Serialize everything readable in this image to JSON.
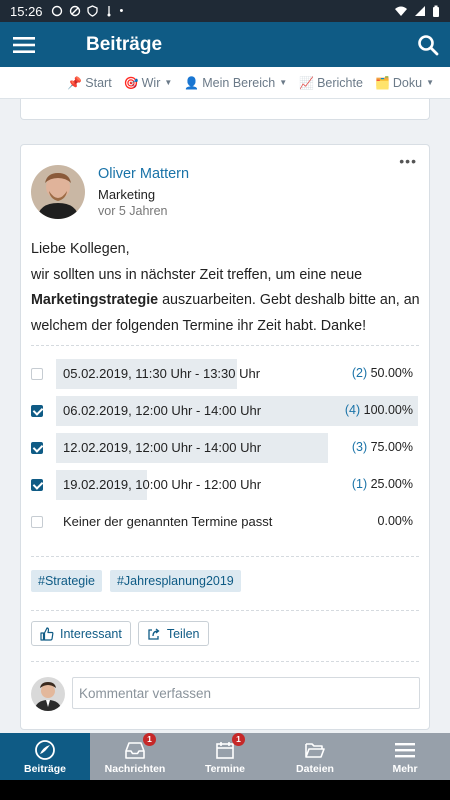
{
  "status_bar": {
    "time": "15:26"
  },
  "app_bar": {
    "title": "Beiträge"
  },
  "top_nav": {
    "items": [
      {
        "icon": "pin-icon",
        "emoji": "📌",
        "label": "Start",
        "has_caret": false
      },
      {
        "icon": "target-icon",
        "emoji": "🎯",
        "label": "Wir",
        "has_caret": true
      },
      {
        "icon": "user-icon",
        "emoji": "👤",
        "label": "Mein Bereich",
        "has_caret": true
      },
      {
        "icon": "chart-icon",
        "emoji": "📈",
        "label": "Berichte",
        "has_caret": false
      },
      {
        "icon": "folder-icon",
        "emoji": "🗂️",
        "label": "Doku",
        "has_caret": true
      }
    ]
  },
  "post": {
    "author": "Oliver Mattern",
    "department": "Marketing",
    "time_ago": "vor 5 Jahren",
    "body_line1": "Liebe Kollegen,",
    "body_line2": "wir sollten uns in nächster Zeit treffen, um eine neue",
    "body_bold": "Marketingstrategie",
    "body_rest": " auszuarbeiten. Gebt deshalb bitte an, an welchem der folgenden Termine ihr Zeit habt. Danke!",
    "poll": [
      {
        "label": "05.02.2019, 11:30 Uhr - 13:30 Uhr",
        "count": "(2)",
        "percent": "50.00%",
        "fraction": 0.5,
        "checked": false
      },
      {
        "label": "06.02.2019, 12:00 Uhr - 14:00 Uhr",
        "count": "(4)",
        "percent": "100.00%",
        "fraction": 1.0,
        "checked": true
      },
      {
        "label": "12.02.2019, 12:00 Uhr - 14:00 Uhr",
        "count": "(3)",
        "percent": "75.00%",
        "fraction": 0.75,
        "checked": true
      },
      {
        "label": "19.02.2019, 10:00 Uhr - 12:00 Uhr",
        "count": "(1)",
        "percent": "25.00%",
        "fraction": 0.25,
        "checked": true
      },
      {
        "label": "Keiner der genannten Termine passt",
        "count": "",
        "percent": "0.00%",
        "fraction": 0.0,
        "checked": false
      }
    ],
    "tags": [
      "#Strategie",
      "#Jahresplanung2019"
    ],
    "like_label": "Interessant",
    "share_label": "Teilen",
    "comment_placeholder": "Kommentar verfassen"
  },
  "bottom_nav": [
    {
      "label": "Beiträge",
      "icon": "posts-icon",
      "badge": "",
      "active": true
    },
    {
      "label": "Nachrichten",
      "icon": "inbox-icon",
      "badge": "1",
      "active": false
    },
    {
      "label": "Termine",
      "icon": "calendar-icon",
      "badge": "1",
      "active": false
    },
    {
      "label": "Dateien",
      "icon": "folder-open-icon",
      "badge": "",
      "active": false
    },
    {
      "label": "Mehr",
      "icon": "menu-icon",
      "badge": "",
      "active": false
    }
  ],
  "colors": {
    "primary": "#0f5b85",
    "link": "#1a73a8",
    "bottom_nav_bg": "#97a0aa",
    "badge": "#c62828"
  }
}
